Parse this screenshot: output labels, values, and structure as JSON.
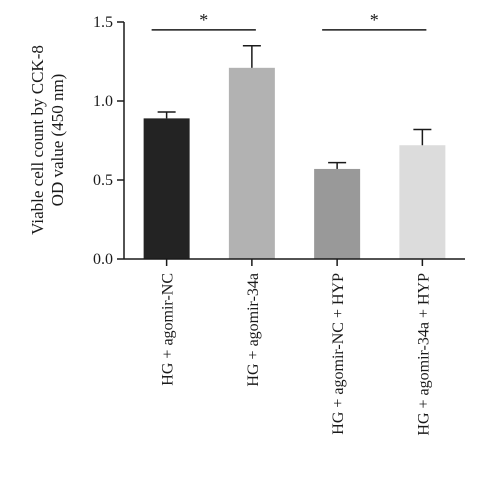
{
  "chart_data": {
    "type": "bar",
    "title": "",
    "xlabel": "",
    "ylabel_lines": [
      "Viable cell count by CCK-8",
      "OD value (450 nm)"
    ],
    "ylim": [
      0,
      1.5
    ],
    "yticks": [
      "0.0",
      "0.5",
      "1.0",
      "1.5"
    ],
    "grid": false,
    "categories": [
      "HG + agomir-NC",
      "HG + agomir-34a",
      "HG + agomir-NC + HYP",
      "HG + agomir-34a + HYP"
    ],
    "values": [
      0.89,
      1.21,
      0.57,
      0.72
    ],
    "errors": [
      0.04,
      0.14,
      0.04,
      0.1
    ],
    "colors": [
      "#232323",
      "#b2b2b2",
      "#999999",
      "#dcdcdc"
    ],
    "significance": [
      {
        "between": [
          0,
          1
        ],
        "label": "*",
        "y": 1.45
      },
      {
        "between": [
          2,
          3
        ],
        "label": "*",
        "y": 1.45
      }
    ]
  }
}
